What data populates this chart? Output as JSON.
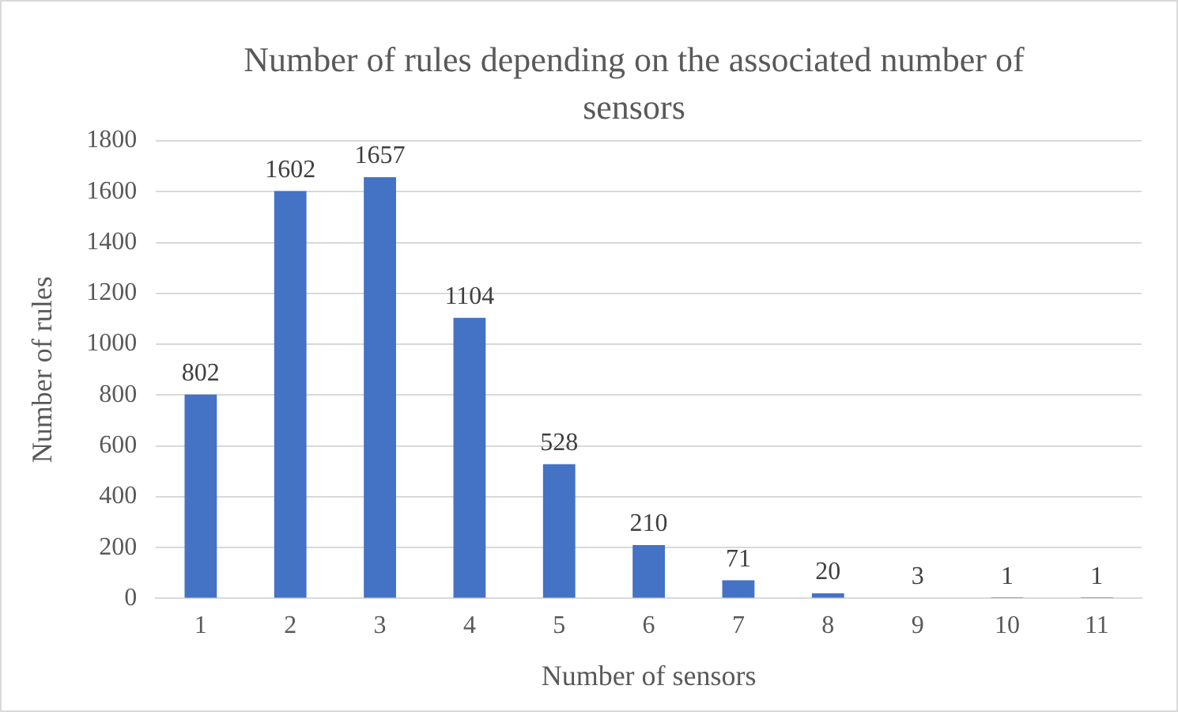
{
  "chart_data": {
    "type": "bar",
    "title": "Number of rules depending on the associated number of sensors",
    "xlabel": "Number of sensors",
    "ylabel": "Number of rules",
    "categories": [
      "1",
      "2",
      "3",
      "4",
      "5",
      "6",
      "7",
      "8",
      "9",
      "10",
      "11"
    ],
    "values": [
      802,
      1602,
      1657,
      1104,
      528,
      210,
      71,
      20,
      3,
      1,
      1
    ],
    "color": "#4472c4",
    "ylim": [
      0,
      1800
    ],
    "yticks": [
      0,
      200,
      400,
      600,
      800,
      1000,
      1200,
      1400,
      1600,
      1800
    ],
    "grid": "y",
    "data_labels": true
  }
}
